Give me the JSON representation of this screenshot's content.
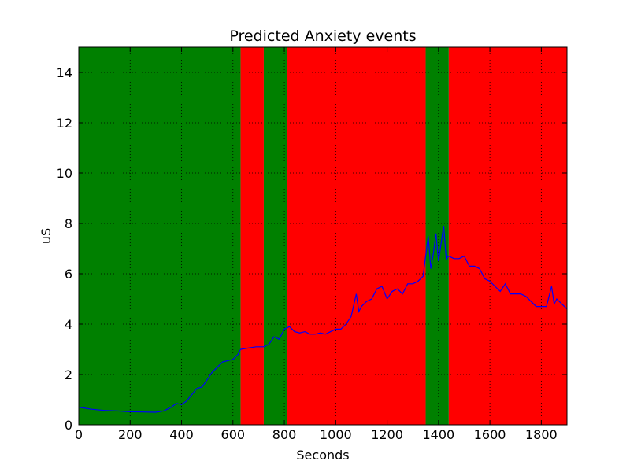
{
  "chart_data": {
    "type": "line",
    "title": "Predicted Anxiety events",
    "xlabel": "Seconds",
    "ylabel": "uS",
    "xlim": [
      0,
      1900
    ],
    "ylim": [
      0,
      15
    ],
    "xticks": [
      0,
      200,
      400,
      600,
      800,
      1000,
      1200,
      1400,
      1600,
      1800
    ],
    "yticks": [
      0,
      2,
      4,
      6,
      8,
      10,
      12,
      14
    ],
    "grid": true,
    "bands": [
      {
        "start": 0,
        "end": 630,
        "color": "#008000"
      },
      {
        "start": 630,
        "end": 720,
        "color": "#ff0000"
      },
      {
        "start": 720,
        "end": 810,
        "color": "#008000"
      },
      {
        "start": 810,
        "end": 1350,
        "color": "#ff0000"
      },
      {
        "start": 1350,
        "end": 1440,
        "color": "#008000"
      },
      {
        "start": 1440,
        "end": 1900,
        "color": "#ff0000"
      }
    ],
    "x": [
      0,
      50,
      100,
      150,
      200,
      250,
      300,
      330,
      360,
      380,
      400,
      420,
      440,
      460,
      480,
      500,
      520,
      540,
      560,
      580,
      600,
      620,
      630,
      660,
      690,
      720,
      740,
      760,
      780,
      800,
      820,
      840,
      860,
      880,
      900,
      920,
      940,
      960,
      980,
      1000,
      1020,
      1040,
      1060,
      1080,
      1090,
      1100,
      1120,
      1140,
      1160,
      1180,
      1200,
      1220,
      1240,
      1260,
      1280,
      1300,
      1320,
      1340,
      1360,
      1370,
      1380,
      1390,
      1400,
      1420,
      1430,
      1440,
      1460,
      1480,
      1500,
      1520,
      1540,
      1560,
      1580,
      1600,
      1620,
      1640,
      1660,
      1680,
      1700,
      1720,
      1740,
      1760,
      1780,
      1800,
      1820,
      1840,
      1850,
      1860,
      1880,
      1900
    ],
    "series": [
      {
        "color": "#0000ff",
        "values": [
          0.7,
          0.62,
          0.57,
          0.55,
          0.52,
          0.51,
          0.5,
          0.55,
          0.7,
          0.85,
          0.8,
          0.95,
          1.2,
          1.45,
          1.5,
          1.8,
          2.1,
          2.3,
          2.5,
          2.55,
          2.6,
          2.8,
          3.0,
          3.05,
          3.1,
          3.1,
          3.2,
          3.5,
          3.4,
          3.8,
          3.9,
          3.7,
          3.65,
          3.7,
          3.6,
          3.6,
          3.65,
          3.6,
          3.7,
          3.8,
          3.8,
          4.0,
          4.3,
          5.2,
          4.5,
          4.7,
          4.9,
          5.0,
          5.4,
          5.5,
          5.0,
          5.3,
          5.4,
          5.2,
          5.6,
          5.6,
          5.7,
          5.9,
          7.5,
          6.2,
          6.8,
          7.6,
          6.5,
          7.9,
          6.6,
          6.7,
          6.6,
          6.6,
          6.7,
          6.3,
          6.3,
          6.2,
          5.8,
          5.7,
          5.5,
          5.3,
          5.6,
          5.2,
          5.2,
          5.2,
          5.1,
          4.9,
          4.7,
          4.7,
          4.7,
          5.5,
          4.8,
          5.0,
          4.8,
          4.6
        ]
      }
    ]
  }
}
